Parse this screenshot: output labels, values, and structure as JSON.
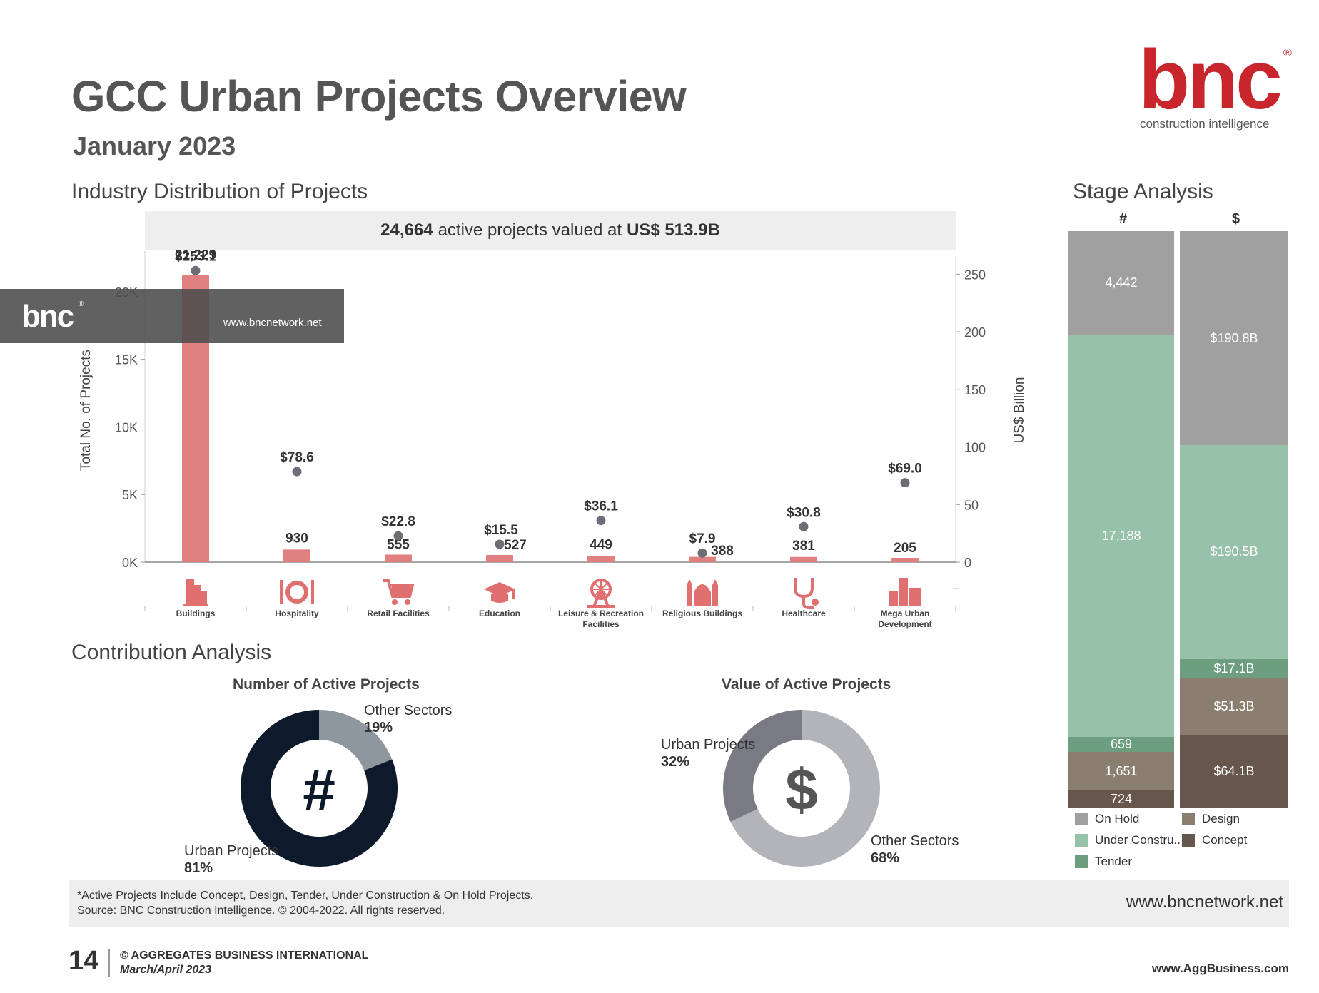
{
  "header": {
    "title": "GCC Urban Projects Overview",
    "subtitle": "January 2023",
    "logo_text": "bnc",
    "logo_registered": "®",
    "logo_tagline": "construction intelligence"
  },
  "industry_section": {
    "heading": "Industry Distribution of Projects",
    "summary_count": "24,664",
    "summary_mid": "active projects valued at",
    "summary_value": "US$ 513.9B"
  },
  "watermark": {
    "logo": "bnc",
    "reg": "®",
    "url": "www.bncnetwork.net"
  },
  "chart_data": [
    {
      "type": "bar",
      "title": "",
      "categories": [
        "Buildings",
        "Hospitality",
        "Retail Facilities",
        "Education",
        "Leisure & Recreation Facilities",
        "Religious Buildings",
        "Healthcare",
        "Mega Urban Development"
      ],
      "series": [
        {
          "name": "",
          "axis": "left",
          "values": [
            21229,
            930,
            555,
            527,
            449,
            388,
            381,
            205
          ],
          "labels": [
            "21,229",
            "930",
            "555",
            "527",
            "449",
            "388",
            "381",
            "205"
          ],
          "color": "#e08080"
        },
        {
          "name": "",
          "axis": "right",
          "values": [
            253.1,
            78.6,
            22.8,
            15.5,
            36.1,
            7.9,
            30.8,
            69.0
          ],
          "labels": [
            "$253.1",
            "$78.6",
            "$22.8",
            "$15.5",
            "$36.1",
            "$7.9",
            "$30.8",
            "$69.0"
          ],
          "color": "#6d6d75"
        }
      ],
      "ylabel": "Total No. of Projects",
      "y_ticks": [
        "0K",
        "5K",
        "10K",
        "15K",
        "20K"
      ],
      "ylim": [
        0,
        23000
      ],
      "y2label": "US$ Billion",
      "y2_ticks": [
        "0",
        "50",
        "100",
        "150",
        "200",
        "250"
      ],
      "y2lim": [
        0,
        270
      ]
    },
    {
      "type": "pie",
      "title": "Number of Active Projects",
      "center_icon": "#",
      "slices": [
        {
          "name": "Other Sectors",
          "value": 19,
          "label": "19%",
          "color": "#8e979f"
        },
        {
          "name": "Urban Projects",
          "value": 81,
          "label": "81%",
          "color": "#0d1a2b"
        }
      ]
    },
    {
      "type": "pie",
      "title": "Value of Active Projects",
      "center_icon": "$",
      "slices": [
        {
          "name": "Other Sectors",
          "value": 68,
          "label": "68%",
          "color": "#b3b3ba"
        },
        {
          "name": "Urban Projects",
          "value": 32,
          "label": "32%",
          "color": "#7a7a85"
        }
      ]
    },
    {
      "type": "bar",
      "title": "Stage Analysis",
      "stacked": true,
      "categories": [
        "#",
        "$"
      ],
      "series": [
        {
          "name": "On Hold",
          "color": "#a0a0a0",
          "values": [
            4442,
            190.8
          ],
          "labels": [
            "4,442",
            "$190.8B"
          ]
        },
        {
          "name": "Under Constru..",
          "color": "#97c1a9",
          "values": [
            17188,
            190.5
          ],
          "labels": [
            "17,188",
            "$190.5B"
          ]
        },
        {
          "name": "Tender",
          "color": "#6d9e80",
          "values": [
            659,
            17.1
          ],
          "labels": [
            "659",
            "$17.1B"
          ]
        },
        {
          "name": "Design",
          "color": "#8a7e71",
          "values": [
            1651,
            51.3
          ],
          "labels": [
            "1,651",
            "$51.3B"
          ]
        },
        {
          "name": "Concept",
          "color": "#66564b",
          "values": [
            724,
            64.1
          ],
          "labels": [
            "724",
            "$64.1B"
          ]
        }
      ]
    }
  ],
  "contribution_section": {
    "heading": "Contribution Analysis",
    "left_other_label": "Other Sectors",
    "left_other_pct": "19%",
    "left_urban_label": "Urban Projects",
    "left_urban_pct": "81%",
    "right_urban_label": "Urban Projects",
    "right_urban_pct": "32%",
    "right_other_label": "Other Sectors",
    "right_other_pct": "68%"
  },
  "stage_section": {
    "heading": "Stage Analysis",
    "col_count": "#",
    "col_value": "$"
  },
  "footer": {
    "note_line1": "*Active Projects Include Concept, Design, Tender, Under Construction & On Hold Projects.",
    "note_line2": "Source: BNC Construction Intelligence. © 2004-2022. All rights reserved.",
    "url": "www.bncnetwork.net",
    "page_number": "14",
    "publication": "© AGGREGATES BUSINESS INTERNATIONAL",
    "issue": "March/April 2023",
    "agg_url": "www.AggBusiness.com"
  },
  "icons": [
    "buildings-icon",
    "hospitality-icon",
    "retail-icon",
    "education-icon",
    "leisure-icon",
    "religious-icon",
    "healthcare-icon",
    "mega-urban-icon"
  ]
}
